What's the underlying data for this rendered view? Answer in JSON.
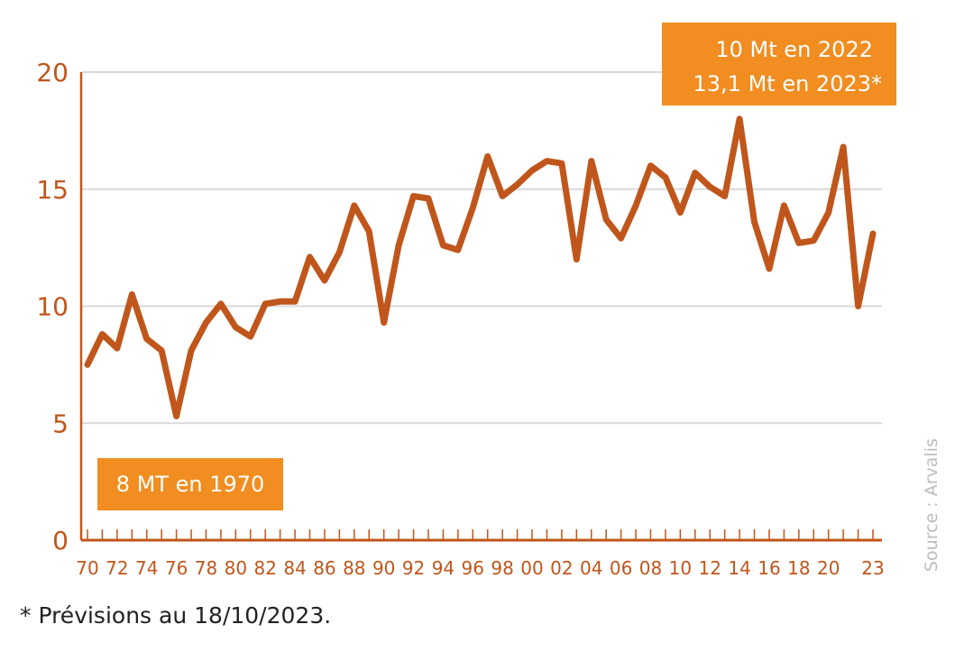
{
  "chart_data": {
    "type": "line",
    "x": [
      1970,
      1971,
      1972,
      1973,
      1974,
      1975,
      1976,
      1977,
      1978,
      1979,
      1980,
      1981,
      1982,
      1983,
      1984,
      1985,
      1986,
      1987,
      1988,
      1989,
      1990,
      1991,
      1992,
      1993,
      1994,
      1995,
      1996,
      1997,
      1998,
      1999,
      2000,
      2001,
      2002,
      2003,
      2004,
      2005,
      2006,
      2007,
      2008,
      2009,
      2010,
      2011,
      2012,
      2013,
      2014,
      2015,
      2016,
      2017,
      2018,
      2019,
      2020,
      2021,
      2022,
      2023
    ],
    "series": [
      {
        "values": [
          7.5,
          8.8,
          8.2,
          10.5,
          8.6,
          8.1,
          5.3,
          8.1,
          9.3,
          10.1,
          9.1,
          8.7,
          10.1,
          10.2,
          10.2,
          12.1,
          11.1,
          12.3,
          14.3,
          13.2,
          9.3,
          12.6,
          14.7,
          14.6,
          12.6,
          12.4,
          14.2,
          16.4,
          14.7,
          15.2,
          15.8,
          16.2,
          16.1,
          12.0,
          16.2,
          13.7,
          12.9,
          14.3,
          16.0,
          15.5,
          14.0,
          15.7,
          15.1,
          14.7,
          18.0,
          13.6,
          11.6,
          14.3,
          12.7,
          12.8,
          14.0,
          16.8,
          10.0,
          13.1
        ]
      }
    ],
    "xticks": [
      "70",
      "72",
      "74",
      "76",
      "78",
      "80",
      "82",
      "84",
      "86",
      "88",
      "90",
      "92",
      "94",
      "96",
      "98",
      "00",
      "02",
      "04",
      "06",
      "08",
      "10",
      "12",
      "14",
      "16",
      "18",
      "20",
      "23"
    ],
    "yticks": [
      "0",
      "5",
      "10",
      "15",
      "20"
    ],
    "ylim": [
      0,
      20
    ],
    "xlim": [
      1970,
      2023
    ],
    "grid": true,
    "colors": {
      "line": "#c0561b",
      "annotation_box": "#f18d21",
      "gridline": "#d9d9d9"
    },
    "annotations": {
      "box_top_line1": "10 Mt en 2022",
      "box_top_line2": "13,1 Mt en 2023*",
      "box_bottom": "8 MT en 1970"
    }
  },
  "source_text": "Source : Arvalis",
  "footnote": "* Prévisions au 18/10/2023."
}
